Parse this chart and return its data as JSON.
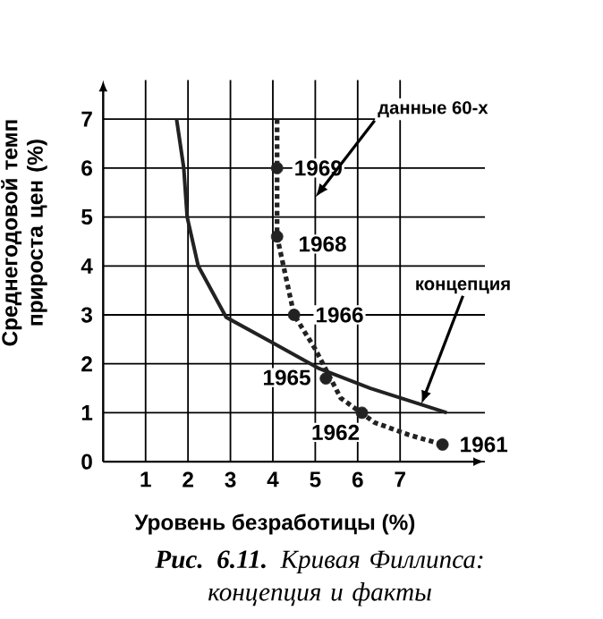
{
  "chart_data": {
    "type": "scatter",
    "title": "**Рис. 6.11.** Кривая Филлипса: концепция и факты",
    "xlabel": "Уровень безработицы (%)",
    "ylabel": "Среднегодовой темп прироста цен (%)",
    "xlim": [
      0,
      9
    ],
    "ylim": [
      0,
      7.8
    ],
    "xticks": [
      1,
      2,
      3,
      4,
      5,
      6,
      7
    ],
    "yticks": [
      0,
      1,
      2,
      3,
      4,
      5,
      6,
      7
    ],
    "grid": true,
    "series": [
      {
        "color": "#222222",
        "marker": "circle",
        "x": [
          4.1,
          4.1,
          4.5,
          5.25,
          6.1,
          8.0
        ],
        "values": [
          6,
          4.6,
          3,
          1.7,
          1,
          0.35
        ]
      },
      {
        "type": "line",
        "color": "#222222",
        "line_style": "solid",
        "marker": "none",
        "x": [
          1.73,
          1.9,
          1.98,
          2.24,
          2.9,
          3.93,
          5.1,
          6.3,
          8.1
        ],
        "values": [
          7,
          6,
          5,
          4,
          2.95,
          2.46,
          1.9,
          1.5,
          1.0
        ]
      },
      {
        "type": "line",
        "color": "#222222",
        "line_style": "dotted",
        "marker": "none",
        "x": [
          4.1,
          4.1,
          4.5,
          5.0,
          5.6,
          6.4,
          7.2,
          8.0
        ],
        "values": [
          7,
          4.6,
          3,
          2.3,
          1.3,
          0.8,
          0.55,
          0.35
        ]
      }
    ],
    "annotations": [
      {
        "text": "1969",
        "x": 4.1,
        "y": 6
      },
      {
        "text": "1968",
        "x": 4.1,
        "y": 4.6
      },
      {
        "text": "1966",
        "x": 4.5,
        "y": 3
      },
      {
        "text": "1965",
        "x": 5.25,
        "y": 1.7
      },
      {
        "text": "1962",
        "x": 6.1,
        "y": 1
      },
      {
        "text": "1961",
        "x": 8.0,
        "y": 0.35
      },
      "данные 60-х",
      {
        "text": "концепция",
        "x": 7.5,
        "y": 1.17
      }
    ]
  }
}
